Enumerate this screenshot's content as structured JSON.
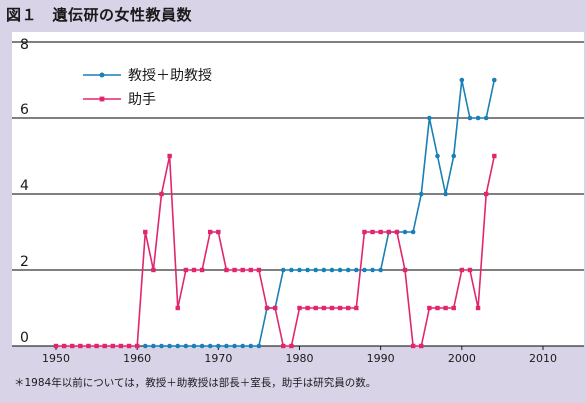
{
  "figure": {
    "title": "図１　遺伝研の女性教員数",
    "note": "＊1984年以前については，教授＋助教授は部長＋室長，助手は研究員の数。"
  },
  "colors": {
    "background": "#d9d3e8",
    "plot_background": "#ffffff",
    "series_1": "#1a7fb5",
    "series_2": "#e0266e",
    "grid": "#000000"
  },
  "chart_data": {
    "type": "line",
    "title": "",
    "xlabel": "",
    "ylabel": "",
    "xlim": [
      1950,
      2010
    ],
    "ylim": [
      0,
      8
    ],
    "x_ticks": [
      1950,
      1960,
      1970,
      1980,
      1990,
      2000,
      2010
    ],
    "y_ticks": [
      0,
      2,
      4,
      6,
      8
    ],
    "grid": true,
    "legend_position": "top-left",
    "series": [
      {
        "name": "教授＋助教授",
        "marker": "circle",
        "x": [
          1961,
          1962,
          1963,
          1964,
          1965,
          1966,
          1967,
          1968,
          1969,
          1970,
          1971,
          1972,
          1973,
          1974,
          1975,
          1976,
          1977,
          1978,
          1979,
          1980,
          1981,
          1982,
          1983,
          1984,
          1985,
          1986,
          1987,
          1988,
          1989,
          1990,
          1991,
          1992,
          1993,
          1994,
          1995,
          1996,
          1997,
          1998,
          1999,
          2000,
          2001,
          2002,
          2003,
          2004
        ],
        "y": [
          0,
          0,
          0,
          0,
          0,
          0,
          0,
          0,
          0,
          0,
          0,
          0,
          0,
          0,
          0,
          1,
          1,
          2,
          2,
          2,
          2,
          2,
          2,
          2,
          2,
          2,
          2,
          2,
          2,
          2,
          3,
          3,
          3,
          3,
          4,
          6,
          5,
          4,
          5,
          7,
          6,
          6,
          6,
          7
        ]
      },
      {
        "name": "助手",
        "marker": "square",
        "x": [
          1950,
          1951,
          1952,
          1953,
          1954,
          1955,
          1956,
          1957,
          1958,
          1959,
          1960,
          1961,
          1962,
          1963,
          1964,
          1965,
          1966,
          1967,
          1968,
          1969,
          1970,
          1971,
          1972,
          1973,
          1974,
          1975,
          1976,
          1977,
          1978,
          1979,
          1980,
          1981,
          1982,
          1983,
          1984,
          1985,
          1986,
          1987,
          1988,
          1989,
          1990,
          1991,
          1992,
          1993,
          1994,
          1995,
          1996,
          1997,
          1998,
          1999,
          2000,
          2001,
          2002,
          2003,
          2004
        ],
        "y": [
          0,
          0,
          0,
          0,
          0,
          0,
          0,
          0,
          0,
          0,
          0,
          3,
          2,
          4,
          5,
          1,
          2,
          2,
          2,
          3,
          3,
          2,
          2,
          2,
          2,
          2,
          1,
          1,
          0,
          0,
          1,
          1,
          1,
          1,
          1,
          1,
          1,
          1,
          3,
          3,
          3,
          3,
          3,
          2,
          0,
          0,
          1,
          1,
          1,
          1,
          2,
          2,
          1,
          4,
          5
        ]
      }
    ]
  }
}
